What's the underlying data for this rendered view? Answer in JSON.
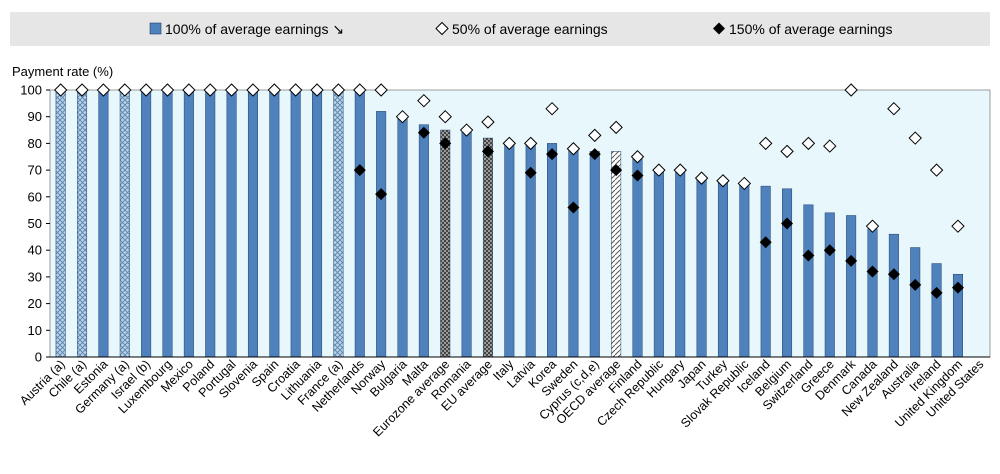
{
  "chart_data": {
    "type": "bar",
    "title": "",
    "xlabel": "",
    "ylabel": "Payment rate (%)",
    "ylim": [
      0,
      100
    ],
    "yticks": [
      0,
      10,
      20,
      30,
      40,
      50,
      60,
      70,
      80,
      90,
      100
    ],
    "grid": false,
    "legend_position": "top",
    "colors": {
      "bar": "#4f81bd",
      "bar_edge": "#1f3f6e",
      "plot_bg": "#e8f7fb",
      "marker_150": "#000000",
      "marker_50": "#ffffff"
    },
    "categories": [
      "Austria (a)",
      "Chile (a)",
      "Estonia",
      "Germany (a)",
      "Israel (b)",
      "Luxembourg",
      "Mexico",
      "Poland",
      "Portugal",
      "Slovenia",
      "Spain",
      "Croatia",
      "Lithuania",
      "France (a)",
      "Netherlands",
      "Norway",
      "Bulgaria",
      "Malta",
      "Eurozone average",
      "Romania",
      "EU average",
      "Italy",
      "Latvia",
      "Korea",
      "Sweden",
      "Cyprus (c,d,e)",
      "OECD average",
      "Finland",
      "Czech Republic",
      "Hungary",
      "Japan",
      "Turkey",
      "Slovak Republic",
      "Iceland",
      "Belgium",
      "Switzerland",
      "Greece",
      "Denmark",
      "Canada",
      "New Zealand",
      "Australia",
      "Ireland",
      "United Kingdom",
      "United States"
    ],
    "bar_styles": [
      "cross",
      "cross",
      "solid",
      "cross",
      "solid",
      "solid",
      "solid",
      "solid",
      "solid",
      "solid",
      "solid",
      "solid",
      "solid",
      "cross",
      "solid",
      "solid",
      "solid",
      "solid",
      "dots",
      "solid",
      "dots",
      "solid",
      "solid",
      "solid",
      "solid",
      "solid",
      "hatch",
      "solid",
      "solid",
      "solid",
      "solid",
      "solid",
      "solid",
      "solid",
      "solid",
      "solid",
      "solid",
      "solid",
      "solid",
      "solid",
      "solid",
      "solid",
      "solid",
      "solid"
    ],
    "series": [
      {
        "name": "100% of average earnings ↘",
        "kind": "bar",
        "values": [
          100,
          100,
          100,
          100,
          100,
          100,
          100,
          100,
          100,
          100,
          100,
          100,
          100,
          100,
          100,
          92,
          90,
          87,
          85,
          85,
          82,
          80,
          80,
          80,
          78,
          77,
          77,
          75,
          70,
          70,
          67,
          66,
          65,
          64,
          63,
          57,
          54,
          53,
          48,
          46,
          41,
          35,
          31,
          null
        ]
      },
      {
        "name": "50% of average earnings",
        "kind": "marker-open-diamond",
        "values": [
          100,
          100,
          100,
          100,
          100,
          100,
          100,
          100,
          100,
          100,
          100,
          100,
          100,
          100,
          100,
          100,
          90,
          96,
          90,
          85,
          88,
          80,
          80,
          93,
          78,
          83,
          86,
          75,
          70,
          70,
          67,
          66,
          65,
          80,
          77,
          80,
          79,
          100,
          49,
          93,
          82,
          70,
          49,
          null
        ]
      },
      {
        "name": "150% of average earnings",
        "kind": "marker-filled-diamond",
        "values": [
          100,
          100,
          100,
          100,
          100,
          100,
          100,
          100,
          100,
          100,
          100,
          100,
          100,
          100,
          70,
          61,
          90,
          84,
          80,
          85,
          77,
          80,
          69,
          76,
          56,
          76,
          70,
          68,
          70,
          70,
          67,
          66,
          65,
          43,
          50,
          38,
          40,
          36,
          32,
          31,
          27,
          24,
          26,
          null
        ]
      }
    ]
  }
}
